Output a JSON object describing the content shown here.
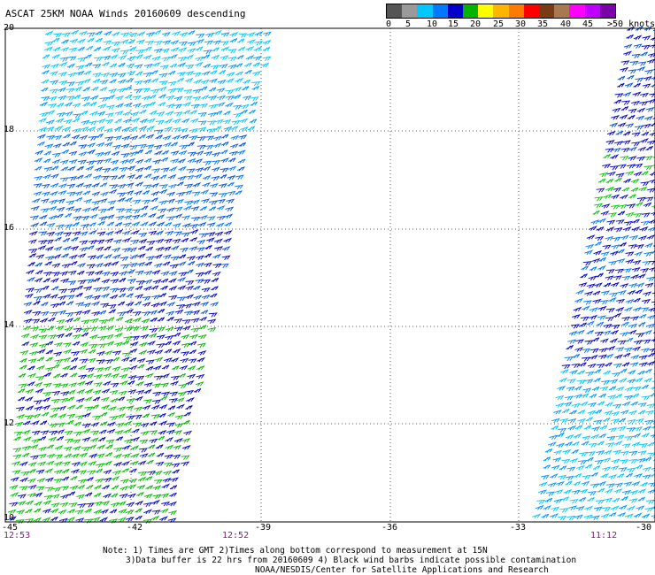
{
  "title": "ASCAT 25KM NOAA Winds 20160609 descending",
  "legend": {
    "colors": [
      "#555555",
      "#9a9a9a",
      "#00c8ff",
      "#0078ff",
      "#0000c8",
      "#00b400",
      "#ffff00",
      "#ffb400",
      "#ff7a00",
      "#ff0000",
      "#7a3a14",
      "#a87850",
      "#ff00ff",
      "#c000ff",
      "#7a00a8"
    ],
    "labels": [
      "0",
      "5",
      "10",
      "15",
      "20",
      "25",
      "30",
      "35",
      "40",
      "45",
      ">50 knots"
    ]
  },
  "axes": {
    "y_ticks": [
      "20",
      "18",
      "16",
      "14",
      "12",
      "10"
    ],
    "x_ticks": [
      "-45",
      "-42",
      "-39",
      "-36",
      "-33",
      "-30"
    ]
  },
  "times": {
    "left_start": "12:53",
    "left_mid": "12:52",
    "right": "11:12"
  },
  "notes": {
    "line1": "Note: 1) Times are GMT 2)Times along bottom correspond to measurement at 15N",
    "line2": "3)Data buffer is 22 hrs from 20160609 4) Black wind barbs indicate possible contamination",
    "line3": "NOAA/NESDIS/Center for Satellite Applications and Research"
  }
}
